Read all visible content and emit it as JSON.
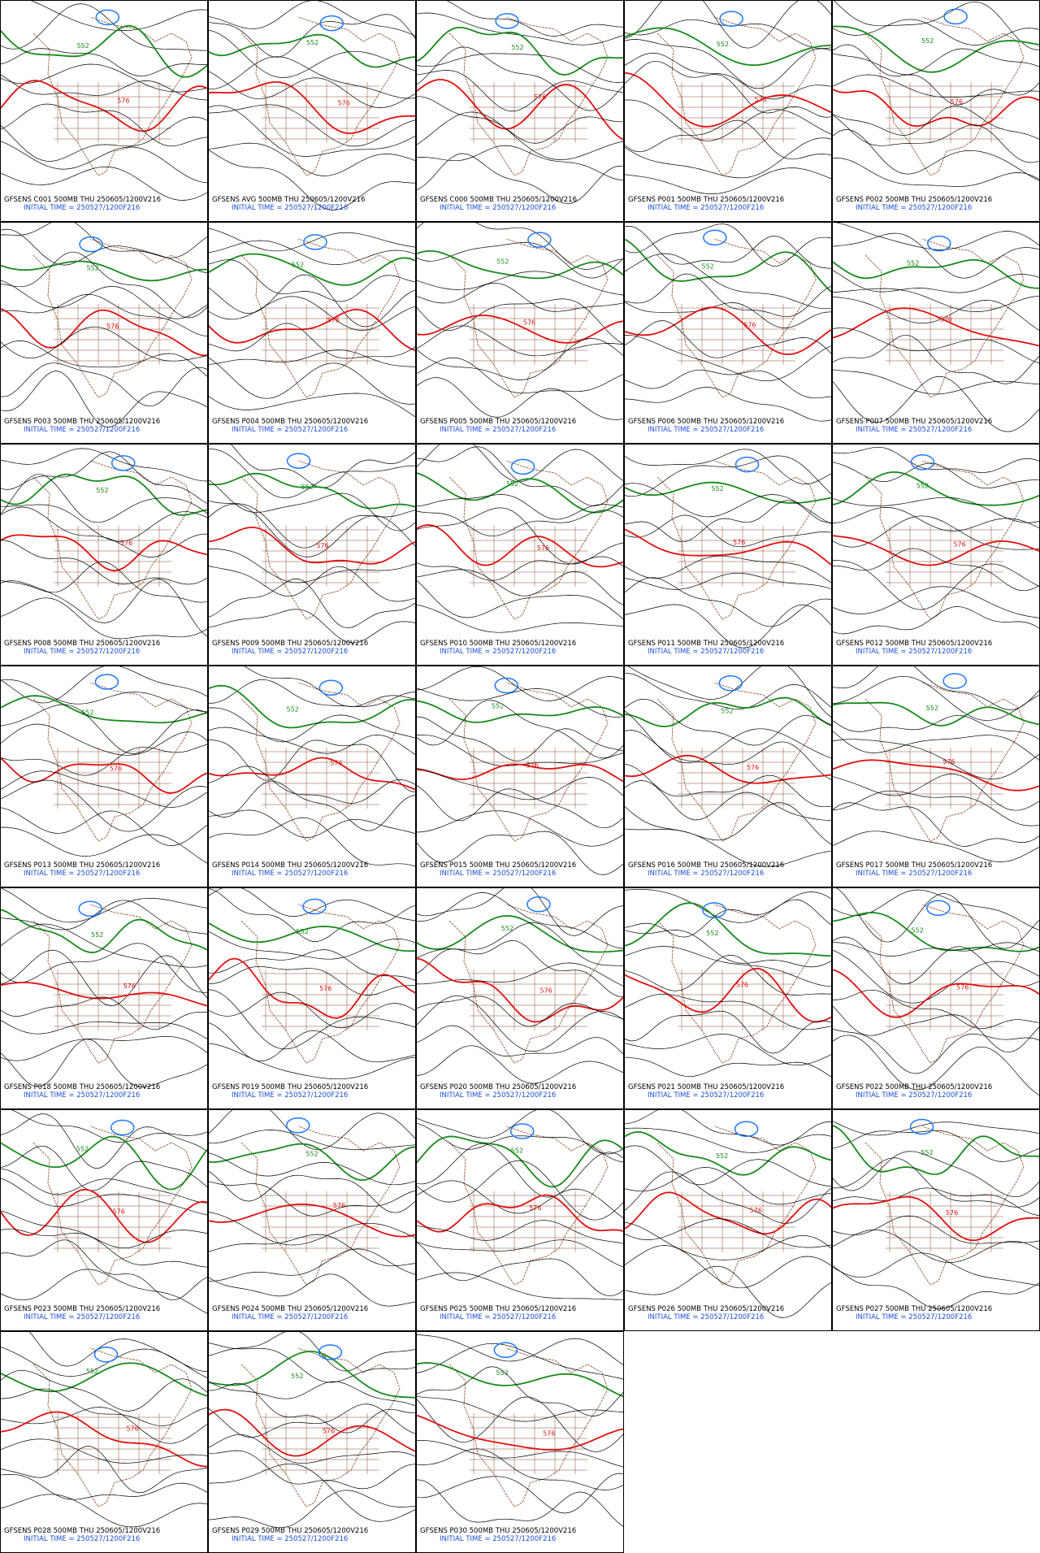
{
  "panels": [
    {
      "caption": "GFSENS C001 500MB THU 250605/1200V216",
      "initial": "INITIAL TIME = 250527/1200F216",
      "contour_labels": [
        "552",
        "576"
      ]
    },
    {
      "caption": "GFSENS AVG 500MB THU 250605/1200V216",
      "initial": "INITIAL TIME = 250527/1200F216",
      "contour_labels": [
        "552",
        "576"
      ]
    },
    {
      "caption": "GFSENS C000 500MB THU 250605/1200V216",
      "initial": "INITIAL TIME = 250527/1200F216",
      "contour_labels": [
        "552",
        "576"
      ]
    },
    {
      "caption": "GFSENS P001 500MB THU 250605/1200V216",
      "initial": "INITIAL TIME = 250527/1200F216",
      "contour_labels": [
        "552",
        "576"
      ]
    },
    {
      "caption": "GFSENS P002 500MB THU 250605/1200V216",
      "initial": "INITIAL TIME = 250527/1200F216",
      "contour_labels": [
        "552",
        "576"
      ]
    },
    {
      "caption": "GFSENS P003 500MB THU 250605/1200V216",
      "initial": "INITIAL TIME = 250527/1200F216",
      "contour_labels": [
        "552",
        "576"
      ]
    },
    {
      "caption": "GFSENS P004 500MB THU 250605/1200V216",
      "initial": "INITIAL TIME = 250527/1200F216",
      "contour_labels": [
        "552",
        "576"
      ]
    },
    {
      "caption": "GFSENS P005 500MB THU 250605/1200V216",
      "initial": "INITIAL TIME = 250527/1200F216",
      "contour_labels": [
        "552",
        "576"
      ]
    },
    {
      "caption": "GFSENS P006 500MB THU 250605/1200V216",
      "initial": "INITIAL TIME = 250527/1200F216",
      "contour_labels": [
        "552",
        "576"
      ]
    },
    {
      "caption": "GFSENS P007 500MB THU 250605/1200V216",
      "initial": "INITIAL TIME = 250527/1200F216",
      "contour_labels": [
        "552",
        "576"
      ]
    },
    {
      "caption": "GFSENS P008 500MB THU 250605/1200V216",
      "initial": "INITIAL TIME = 250527/1200F216",
      "contour_labels": [
        "552",
        "576"
      ]
    },
    {
      "caption": "GFSENS P009 500MB THU 250605/1200V216",
      "initial": "INITIAL TIME = 250527/1200F216",
      "contour_labels": [
        "552",
        "576"
      ]
    },
    {
      "caption": "GFSENS P010 500MB THU 250605/1200V216",
      "initial": "INITIAL TIME = 250527/1200F216",
      "contour_labels": [
        "552",
        "576"
      ]
    },
    {
      "caption": "GFSENS P011 500MB THU 250605/1200V216",
      "initial": "INITIAL TIME = 250527/1200F216",
      "contour_labels": [
        "552",
        "576"
      ]
    },
    {
      "caption": "GFSENS P012 500MB THU 250605/1200V216",
      "initial": "INITIAL TIME = 250527/1200F216",
      "contour_labels": [
        "552",
        "576"
      ]
    },
    {
      "caption": "GFSENS P013 500MB THU 250605/1200V216",
      "initial": "INITIAL TIME = 250527/1200F216",
      "contour_labels": [
        "552",
        "576"
      ]
    },
    {
      "caption": "GFSENS P014 500MB THU 250605/1200V216",
      "initial": "INITIAL TIME = 250527/1200F216",
      "contour_labels": [
        "552",
        "576"
      ]
    },
    {
      "caption": "GFSENS P015 500MB THU 250605/1200V216",
      "initial": "INITIAL TIME = 250527/1200F216",
      "contour_labels": [
        "552",
        "576"
      ]
    },
    {
      "caption": "GFSENS P016 500MB THU 250605/1200V216",
      "initial": "INITIAL TIME = 250527/1200F216",
      "contour_labels": [
        "552",
        "576"
      ]
    },
    {
      "caption": "GFSENS P017 500MB THU 250605/1200V216",
      "initial": "INITIAL TIME = 250527/1200F216",
      "contour_labels": [
        "552",
        "576"
      ]
    },
    {
      "caption": "GFSENS P018 500MB THU 250605/1200V216",
      "initial": "INITIAL TIME = 250527/1200F216",
      "contour_labels": [
        "552",
        "576"
      ]
    },
    {
      "caption": "GFSENS P019 500MB THU 250605/1200V216",
      "initial": "INITIAL TIME = 250527/1200F216",
      "contour_labels": [
        "552",
        "576"
      ]
    },
    {
      "caption": "GFSENS P020 500MB THU 250605/1200V216",
      "initial": "INITIAL TIME = 250527/1200F216",
      "contour_labels": [
        "552",
        "576"
      ]
    },
    {
      "caption": "GFSENS P021 500MB THU 250605/1200V216",
      "initial": "INITIAL TIME = 250527/1200F216",
      "contour_labels": [
        "552",
        "576"
      ]
    },
    {
      "caption": "GFSENS P022 500MB THU 250605/1200V216",
      "initial": "INITIAL TIME = 250527/1200F216",
      "contour_labels": [
        "552",
        "576"
      ]
    },
    {
      "caption": "GFSENS P023 500MB THU 250605/1200V216",
      "initial": "INITIAL TIME = 250527/1200F216",
      "contour_labels": [
        "552",
        "576"
      ]
    },
    {
      "caption": "GFSENS P024 500MB THU 250605/1200V216",
      "initial": "INITIAL TIME = 250527/1200F216",
      "contour_labels": [
        "552",
        "576"
      ]
    },
    {
      "caption": "GFSENS P025 500MB THU 250605/1200V216",
      "initial": "INITIAL TIME = 250527/1200F216",
      "contour_labels": [
        "552",
        "576"
      ]
    },
    {
      "caption": "GFSENS P026 500MB THU 250605/1200V216",
      "initial": "INITIAL TIME = 250527/1200F216",
      "contour_labels": [
        "552",
        "576"
      ]
    },
    {
      "caption": "GFSENS P027 500MB THU 250605/1200V216",
      "initial": "INITIAL TIME = 250527/1200F216",
      "contour_labels": [
        "552",
        "576"
      ]
    },
    {
      "caption": "GFSENS P028 500MB THU 250605/1200V216",
      "initial": "INITIAL TIME = 250527/1200F216",
      "contour_labels": [
        "552",
        "576"
      ]
    },
    {
      "caption": "GFSENS P029 500MB THU 250605/1200V216",
      "initial": "INITIAL TIME = 250527/1200F216",
      "contour_labels": [
        "552",
        "576"
      ]
    },
    {
      "caption": "GFSENS P030 500MB THU 250605/1200V216",
      "initial": "INITIAL TIME = 250527/1200F216",
      "contour_labels": [
        "552",
        "576"
      ]
    }
  ]
}
